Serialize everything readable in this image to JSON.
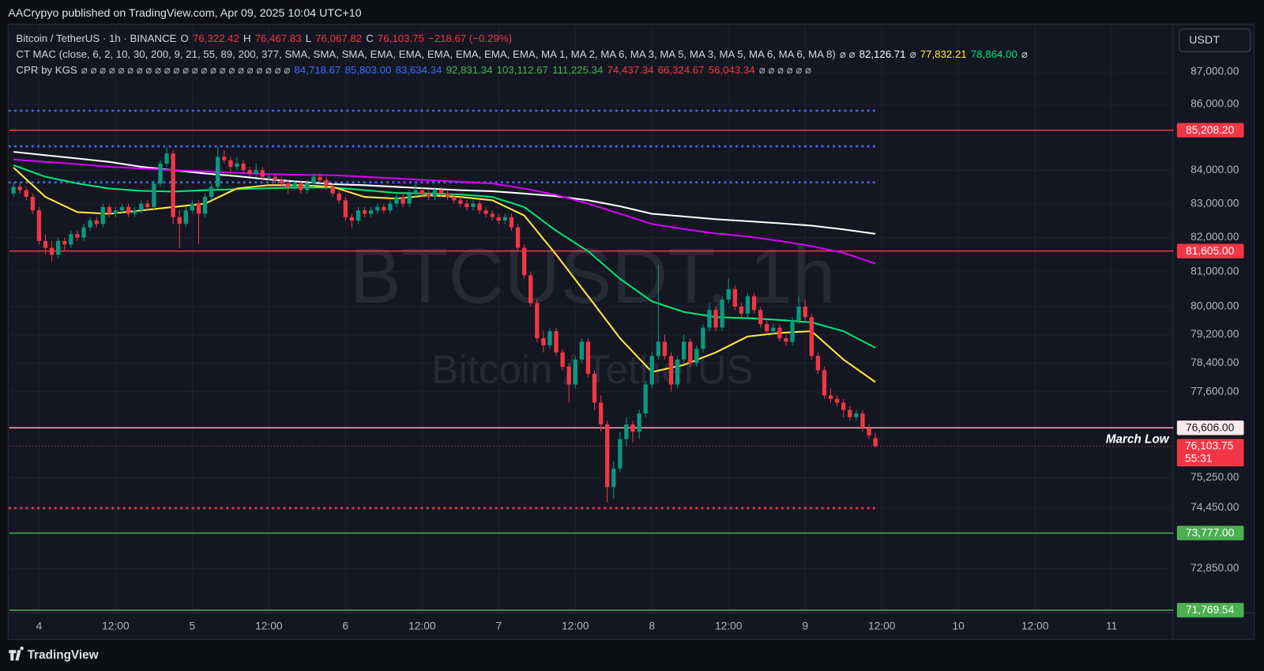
{
  "header": {
    "published": "AACrypyo published on TradingView.com, Apr 09, 2025 10:04 UTC+10",
    "brand": "TradingView"
  },
  "chart_data": {
    "type": "candlestick",
    "log_scale": true,
    "grid": true,
    "watermark": "BTCUSDT, 1h",
    "watermark_sub": "Bitcoin / TetherUS",
    "currency_button": "USDT",
    "legend": {
      "lines": [
        [
          {
            "text": "Bitcoin / TetherUS · 1h · BINANCE",
            "color": "#d1d4dc"
          },
          {
            "text": "O",
            "color": "#d1d4dc"
          },
          {
            "text": "76,322.42",
            "color": "#f23645"
          },
          {
            "text": "H",
            "color": "#d1d4dc"
          },
          {
            "text": "76,467.83",
            "color": "#f23645"
          },
          {
            "text": "L",
            "color": "#d1d4dc"
          },
          {
            "text": "76,067.82",
            "color": "#f23645"
          },
          {
            "text": "C",
            "color": "#d1d4dc"
          },
          {
            "text": "76,103.75",
            "color": "#f23645"
          },
          {
            "text": "−218.67 (−0.29%)",
            "color": "#f23645"
          }
        ],
        [
          {
            "text": "CT MAC (close, 6, 2, 10, 30, 200, 9, 21, 55, 89, 200, 377, SMA, SMA, SMA, EMA, EMA, EMA, EMA, EMA, EMA, MA 1, MA 2, MA 6, MA 3, MA 5, MA 3, MA 5, MA 6, MA 6, MA 8)",
            "color": "#d1d4dc"
          },
          {
            "text": "⌀ ⌀",
            "color": "#d1d4dc"
          },
          {
            "text": "82,126.71",
            "color": "#ffffff"
          },
          {
            "text": "⌀",
            "color": "#d1d4dc"
          },
          {
            "text": "77,832.21",
            "color": "#ffeb3b"
          },
          {
            "text": "78,864.00",
            "color": "#00e676"
          },
          {
            "text": "⌀",
            "color": "#d1d4dc"
          }
        ],
        [
          {
            "text": "CPR by KGS",
            "color": "#d1d4dc"
          },
          {
            "text": "⌀ ⌀ ⌀ ⌀ ⌀ ⌀ ⌀ ⌀ ⌀ ⌀ ⌀ ⌀ ⌀ ⌀ ⌀ ⌀ ⌀ ⌀ ⌀ ⌀ ⌀ ⌀ ⌀",
            "color": "#b2b5be"
          },
          {
            "text": "84,718.67",
            "color": "#3d6cf5"
          },
          {
            "text": "85,803.00",
            "color": "#3d6cf5"
          },
          {
            "text": "83,634.34",
            "color": "#3d6cf5"
          },
          {
            "text": "92,831.34",
            "color": "#4caf50"
          },
          {
            "text": "103,112.67",
            "color": "#4caf50"
          },
          {
            "text": "111,225.34",
            "color": "#4caf50"
          },
          {
            "text": "74,437.34",
            "color": "#f23645"
          },
          {
            "text": "66,324.67",
            "color": "#f23645"
          },
          {
            "text": "56,043.34",
            "color": "#f23645"
          },
          {
            "text": "⌀ ⌀ ⌀ ⌀ ⌀ ⌀",
            "color": "#b2b5be"
          }
        ]
      ]
    },
    "xlim": [
      -0.6,
      181.6
    ],
    "ylim": [
      71700,
      88500
    ],
    "xticks": [
      {
        "value": 4,
        "label": "4"
      },
      {
        "value": 16,
        "label": "12:00"
      },
      {
        "value": 28,
        "label": "5"
      },
      {
        "value": 40,
        "label": "12:00"
      },
      {
        "value": 52,
        "label": "6"
      },
      {
        "value": 64,
        "label": "12:00"
      },
      {
        "value": 76,
        "label": "7"
      },
      {
        "value": 88,
        "label": "12:00"
      },
      {
        "value": 100,
        "label": "8"
      },
      {
        "value": 112,
        "label": "12:00"
      },
      {
        "value": 124,
        "label": "9"
      },
      {
        "value": 136,
        "label": "12:00"
      },
      {
        "value": 148,
        "label": "10"
      },
      {
        "value": 160,
        "label": "12:00"
      },
      {
        "value": 172,
        "label": "11"
      }
    ],
    "yticks": [
      {
        "value": 87000,
        "label": "87,000.00"
      },
      {
        "value": 86000,
        "label": "86,000.00"
      },
      {
        "value": 84000,
        "label": "84,000.00"
      },
      {
        "value": 83000,
        "label": "83,000.00"
      },
      {
        "value": 82000,
        "label": "82,000.00"
      },
      {
        "value": 81000,
        "label": "81,000.00"
      },
      {
        "value": 80000,
        "label": "80,000.00"
      },
      {
        "value": 79200,
        "label": "79,200.00"
      },
      {
        "value": 78400,
        "label": "78,400.00"
      },
      {
        "value": 77600,
        "label": "77,600.00"
      },
      {
        "value": 75250,
        "label": "75,250.00"
      },
      {
        "value": 74450,
        "label": "74,450.00"
      },
      {
        "value": 72850,
        "label": "72,850.00"
      }
    ],
    "up_color": "#089981",
    "down_color": "#f23645",
    "last_price_label": "76,103.75",
    "countdown": "55:31",
    "last_color": "#f23645",
    "levels": [
      {
        "value": 85803,
        "color": "#3d6cf5",
        "style": "dotted"
      },
      {
        "value": 84718.67,
        "color": "#3d6cf5",
        "style": "dotted"
      },
      {
        "value": 83634.34,
        "color": "#3d6cf5",
        "style": "dotted"
      },
      {
        "value": 74437.34,
        "color": "#f23645",
        "style": "dotted"
      },
      {
        "value": 85208.2,
        "label": "85,208.20",
        "color": "#f23645",
        "style": "solid",
        "label_bg": "#f23645",
        "label_fg": "#ffffff"
      },
      {
        "value": 81605,
        "label": "81,605.00",
        "color": "#f23645",
        "style": "solid",
        "label_bg": "#f23645",
        "label_fg": "#ffffff"
      },
      {
        "value": 76606,
        "label": "76,606.00",
        "note": "March Low",
        "color": "#f7a1a8",
        "style": "solid",
        "label_bg": "#fde8ea",
        "label_fg": "#131722"
      },
      {
        "value": 73777,
        "label": "73,777.00",
        "color": "#4caf50",
        "style": "solid",
        "label_bg": "#4caf50",
        "label_fg": "#ffffff"
      },
      {
        "value": 71769.54,
        "label": "71,769.54",
        "color": "#4caf50",
        "style": "solid",
        "label_bg": "#4caf50",
        "label_fg": "#ffffff"
      }
    ],
    "ma_index": [
      0,
      5,
      10,
      15,
      20,
      25,
      30,
      35,
      40,
      45,
      50,
      55,
      60,
      65,
      70,
      75,
      80,
      85,
      90,
      95,
      100,
      105,
      110,
      115,
      120,
      125,
      130,
      135
    ],
    "ma_lines": [
      {
        "color": "#ffffff",
        "values": [
          84550,
          84450,
          84350,
          84250,
          84100,
          84000,
          83900,
          83820,
          83720,
          83650,
          83580,
          83550,
          83500,
          83450,
          83400,
          83370,
          83300,
          83220,
          83100,
          82920,
          82700,
          82620,
          82540,
          82480,
          82420,
          82350,
          82240,
          82110
        ]
      },
      {
        "color": "#d500f9",
        "values": [
          84320,
          84250,
          84180,
          84100,
          84050,
          84000,
          83960,
          83920,
          83880,
          83860,
          83850,
          83800,
          83750,
          83700,
          83650,
          83600,
          83450,
          83260,
          83000,
          82700,
          82400,
          82250,
          82120,
          82030,
          81900,
          81750,
          81550,
          81240
        ]
      },
      {
        "color": "#00e676",
        "values": [
          84150,
          83800,
          83600,
          83450,
          83380,
          83360,
          83400,
          83430,
          83460,
          83480,
          83480,
          83400,
          83320,
          83300,
          83270,
          83200,
          82900,
          82200,
          81600,
          80800,
          80150,
          79850,
          79700,
          79670,
          79620,
          79550,
          79300,
          78830
        ]
      },
      {
        "color": "#ffeb3b",
        "values": [
          84080,
          83200,
          82750,
          82700,
          82800,
          82900,
          83000,
          83450,
          83550,
          83550,
          83500,
          83200,
          83150,
          83250,
          83200,
          83100,
          82650,
          81500,
          80300,
          79100,
          78150,
          78350,
          78700,
          79150,
          79250,
          79300,
          78500,
          77870
        ]
      }
    ],
    "candles": [
      [
        83300,
        83650,
        83200,
        83500
      ],
      [
        83500,
        83600,
        83300,
        83400
      ],
      [
        83400,
        83500,
        83100,
        83200
      ],
      [
        83200,
        83300,
        82700,
        82800
      ],
      [
        82800,
        82900,
        81800,
        81900
      ],
      [
        81900,
        82100,
        81500,
        81700
      ],
      [
        81700,
        81900,
        81300,
        81500
      ],
      [
        81500,
        82000,
        81400,
        81900
      ],
      [
        81900,
        82000,
        81600,
        81800
      ],
      [
        81800,
        82200,
        81700,
        82100
      ],
      [
        82100,
        82200,
        81900,
        82000
      ],
      [
        82000,
        82400,
        81900,
        82300
      ],
      [
        82300,
        82600,
        82200,
        82500
      ],
      [
        82500,
        82600,
        82300,
        82400
      ],
      [
        82400,
        83000,
        82300,
        82900
      ],
      [
        82900,
        83000,
        82600,
        82700
      ],
      [
        82700,
        82900,
        82600,
        82800
      ],
      [
        82800,
        83000,
        82700,
        82900
      ],
      [
        82900,
        83000,
        82600,
        82700
      ],
      [
        82700,
        82900,
        82600,
        82800
      ],
      [
        82800,
        83100,
        82700,
        83000
      ],
      [
        83000,
        83100,
        82800,
        82900
      ],
      [
        82900,
        83700,
        82800,
        83600
      ],
      [
        83600,
        84300,
        83500,
        84200
      ],
      [
        84200,
        84700,
        84100,
        84500
      ],
      [
        84500,
        84600,
        82400,
        82600
      ],
      [
        82600,
        82800,
        81700,
        82400
      ],
      [
        82400,
        82900,
        82300,
        82800
      ],
      [
        82800,
        83100,
        82700,
        83000
      ],
      [
        83000,
        83100,
        81800,
        82700
      ],
      [
        82700,
        83300,
        82600,
        83200
      ],
      [
        83200,
        83600,
        83100,
        83500
      ],
      [
        83500,
        84700,
        83400,
        84400
      ],
      [
        84400,
        84600,
        84200,
        84300
      ],
      [
        84300,
        84400,
        83900,
        84100
      ],
      [
        84100,
        84400,
        84000,
        84200
      ],
      [
        84200,
        84300,
        83900,
        84000
      ],
      [
        84000,
        84100,
        83800,
        83900
      ],
      [
        83900,
        84200,
        83800,
        84000
      ],
      [
        84000,
        84100,
        83700,
        83800
      ],
      [
        83800,
        83900,
        83700,
        83800
      ],
      [
        83800,
        83900,
        83600,
        83700
      ],
      [
        83700,
        83800,
        83500,
        83600
      ],
      [
        83600,
        83700,
        83300,
        83500
      ],
      [
        83500,
        83700,
        83400,
        83600
      ],
      [
        83600,
        83700,
        83300,
        83400
      ],
      [
        83400,
        83700,
        83300,
        83600
      ],
      [
        83600,
        83900,
        83500,
        83800
      ],
      [
        83800,
        83900,
        83600,
        83700
      ],
      [
        83700,
        83800,
        83400,
        83500
      ],
      [
        83500,
        83600,
        83200,
        83300
      ],
      [
        83300,
        83400,
        83000,
        83100
      ],
      [
        83100,
        83200,
        82500,
        82600
      ],
      [
        82600,
        82700,
        82300,
        82500
      ],
      [
        82500,
        82900,
        82400,
        82800
      ],
      [
        82800,
        82900,
        82600,
        82700
      ],
      [
        82700,
        82900,
        82600,
        82800
      ],
      [
        82800,
        83000,
        82700,
        82900
      ],
      [
        82900,
        83000,
        82700,
        82800
      ],
      [
        82800,
        83100,
        82700,
        83000
      ],
      [
        83000,
        83300,
        82900,
        83200
      ],
      [
        83200,
        83300,
        82900,
        83000
      ],
      [
        83000,
        83400,
        82900,
        83300
      ],
      [
        83300,
        83600,
        83200,
        83400
      ],
      [
        83400,
        83500,
        83200,
        83300
      ],
      [
        83300,
        83400,
        83100,
        83200
      ],
      [
        83200,
        83500,
        83100,
        83400
      ],
      [
        83400,
        83500,
        83200,
        83300
      ],
      [
        83300,
        83400,
        83100,
        83200
      ],
      [
        83200,
        83300,
        83000,
        83100
      ],
      [
        83100,
        83200,
        82900,
        83000
      ],
      [
        83000,
        83100,
        82800,
        82900
      ],
      [
        82900,
        83100,
        82800,
        83000
      ],
      [
        83000,
        83100,
        82700,
        82800
      ],
      [
        82800,
        82900,
        82600,
        82700
      ],
      [
        82700,
        82800,
        82500,
        82600
      ],
      [
        82600,
        82700,
        82400,
        82500
      ],
      [
        82500,
        82700,
        82400,
        82600
      ],
      [
        82600,
        82700,
        82200,
        82300
      ],
      [
        82300,
        82400,
        81600,
        81700
      ],
      [
        81700,
        81800,
        80800,
        80900
      ],
      [
        80900,
        81000,
        80000,
        80100
      ],
      [
        80100,
        80200,
        79000,
        79100
      ],
      [
        79100,
        79300,
        78700,
        78900
      ],
      [
        78900,
        79400,
        78800,
        79300
      ],
      [
        79300,
        79400,
        78600,
        78700
      ],
      [
        78700,
        78800,
        78200,
        78300
      ],
      [
        78300,
        78400,
        77300,
        77800
      ],
      [
        77800,
        78600,
        77700,
        78500
      ],
      [
        78500,
        79100,
        78400,
        79000
      ],
      [
        79000,
        79100,
        78000,
        78100
      ],
      [
        78100,
        78200,
        77100,
        77300
      ],
      [
        77300,
        77500,
        76500,
        76700
      ],
      [
        76700,
        76800,
        74600,
        75000
      ],
      [
        75000,
        75700,
        74700,
        75500
      ],
      [
        75500,
        76500,
        75400,
        76300
      ],
      [
        76300,
        76900,
        76100,
        76700
      ],
      [
        76700,
        76800,
        76200,
        76500
      ],
      [
        76500,
        77100,
        76300,
        77000
      ],
      [
        77000,
        77900,
        76900,
        77800
      ],
      [
        77800,
        78700,
        77700,
        78600
      ],
      [
        78600,
        81200,
        78500,
        79000
      ],
      [
        79000,
        79200,
        78500,
        78600
      ],
      [
        78600,
        78700,
        77600,
        77800
      ],
      [
        77800,
        78600,
        77700,
        78500
      ],
      [
        78500,
        79200,
        78400,
        79000
      ],
      [
        79000,
        79100,
        78300,
        78400
      ],
      [
        78400,
        78900,
        78300,
        78800
      ],
      [
        78800,
        79500,
        78700,
        79400
      ],
      [
        79400,
        80100,
        79300,
        79900
      ],
      [
        79900,
        80000,
        79300,
        79400
      ],
      [
        79400,
        80300,
        79300,
        80200
      ],
      [
        80200,
        80800,
        80100,
        80500
      ],
      [
        80500,
        80600,
        79900,
        80000
      ],
      [
        80000,
        80100,
        79700,
        79800
      ],
      [
        79800,
        80400,
        79700,
        80300
      ],
      [
        80300,
        80400,
        79800,
        79900
      ],
      [
        79900,
        80000,
        79400,
        79500
      ],
      [
        79500,
        79600,
        79200,
        79300
      ],
      [
        79300,
        79500,
        79200,
        79400
      ],
      [
        79400,
        79500,
        79000,
        79100
      ],
      [
        79100,
        79200,
        78900,
        79000
      ],
      [
        79000,
        79700,
        78900,
        79600
      ],
      [
        79600,
        80300,
        79500,
        80000
      ],
      [
        80000,
        80200,
        79600,
        79700
      ],
      [
        79700,
        79800,
        78500,
        78600
      ],
      [
        78600,
        78700,
        78100,
        78200
      ],
      [
        78200,
        78300,
        77400,
        77500
      ],
      [
        77500,
        77700,
        77300,
        77400
      ],
      [
        77400,
        77500,
        77200,
        77300
      ],
      [
        77300,
        77400,
        76900,
        77100
      ],
      [
        77100,
        77200,
        76800,
        76900
      ],
      [
        76900,
        77100,
        76800,
        77000
      ],
      [
        77000,
        77100,
        76500,
        76600
      ],
      [
        76600,
        76700,
        76300,
        76400
      ],
      [
        76322.42,
        76467.83,
        76067.82,
        76103.75
      ]
    ]
  }
}
